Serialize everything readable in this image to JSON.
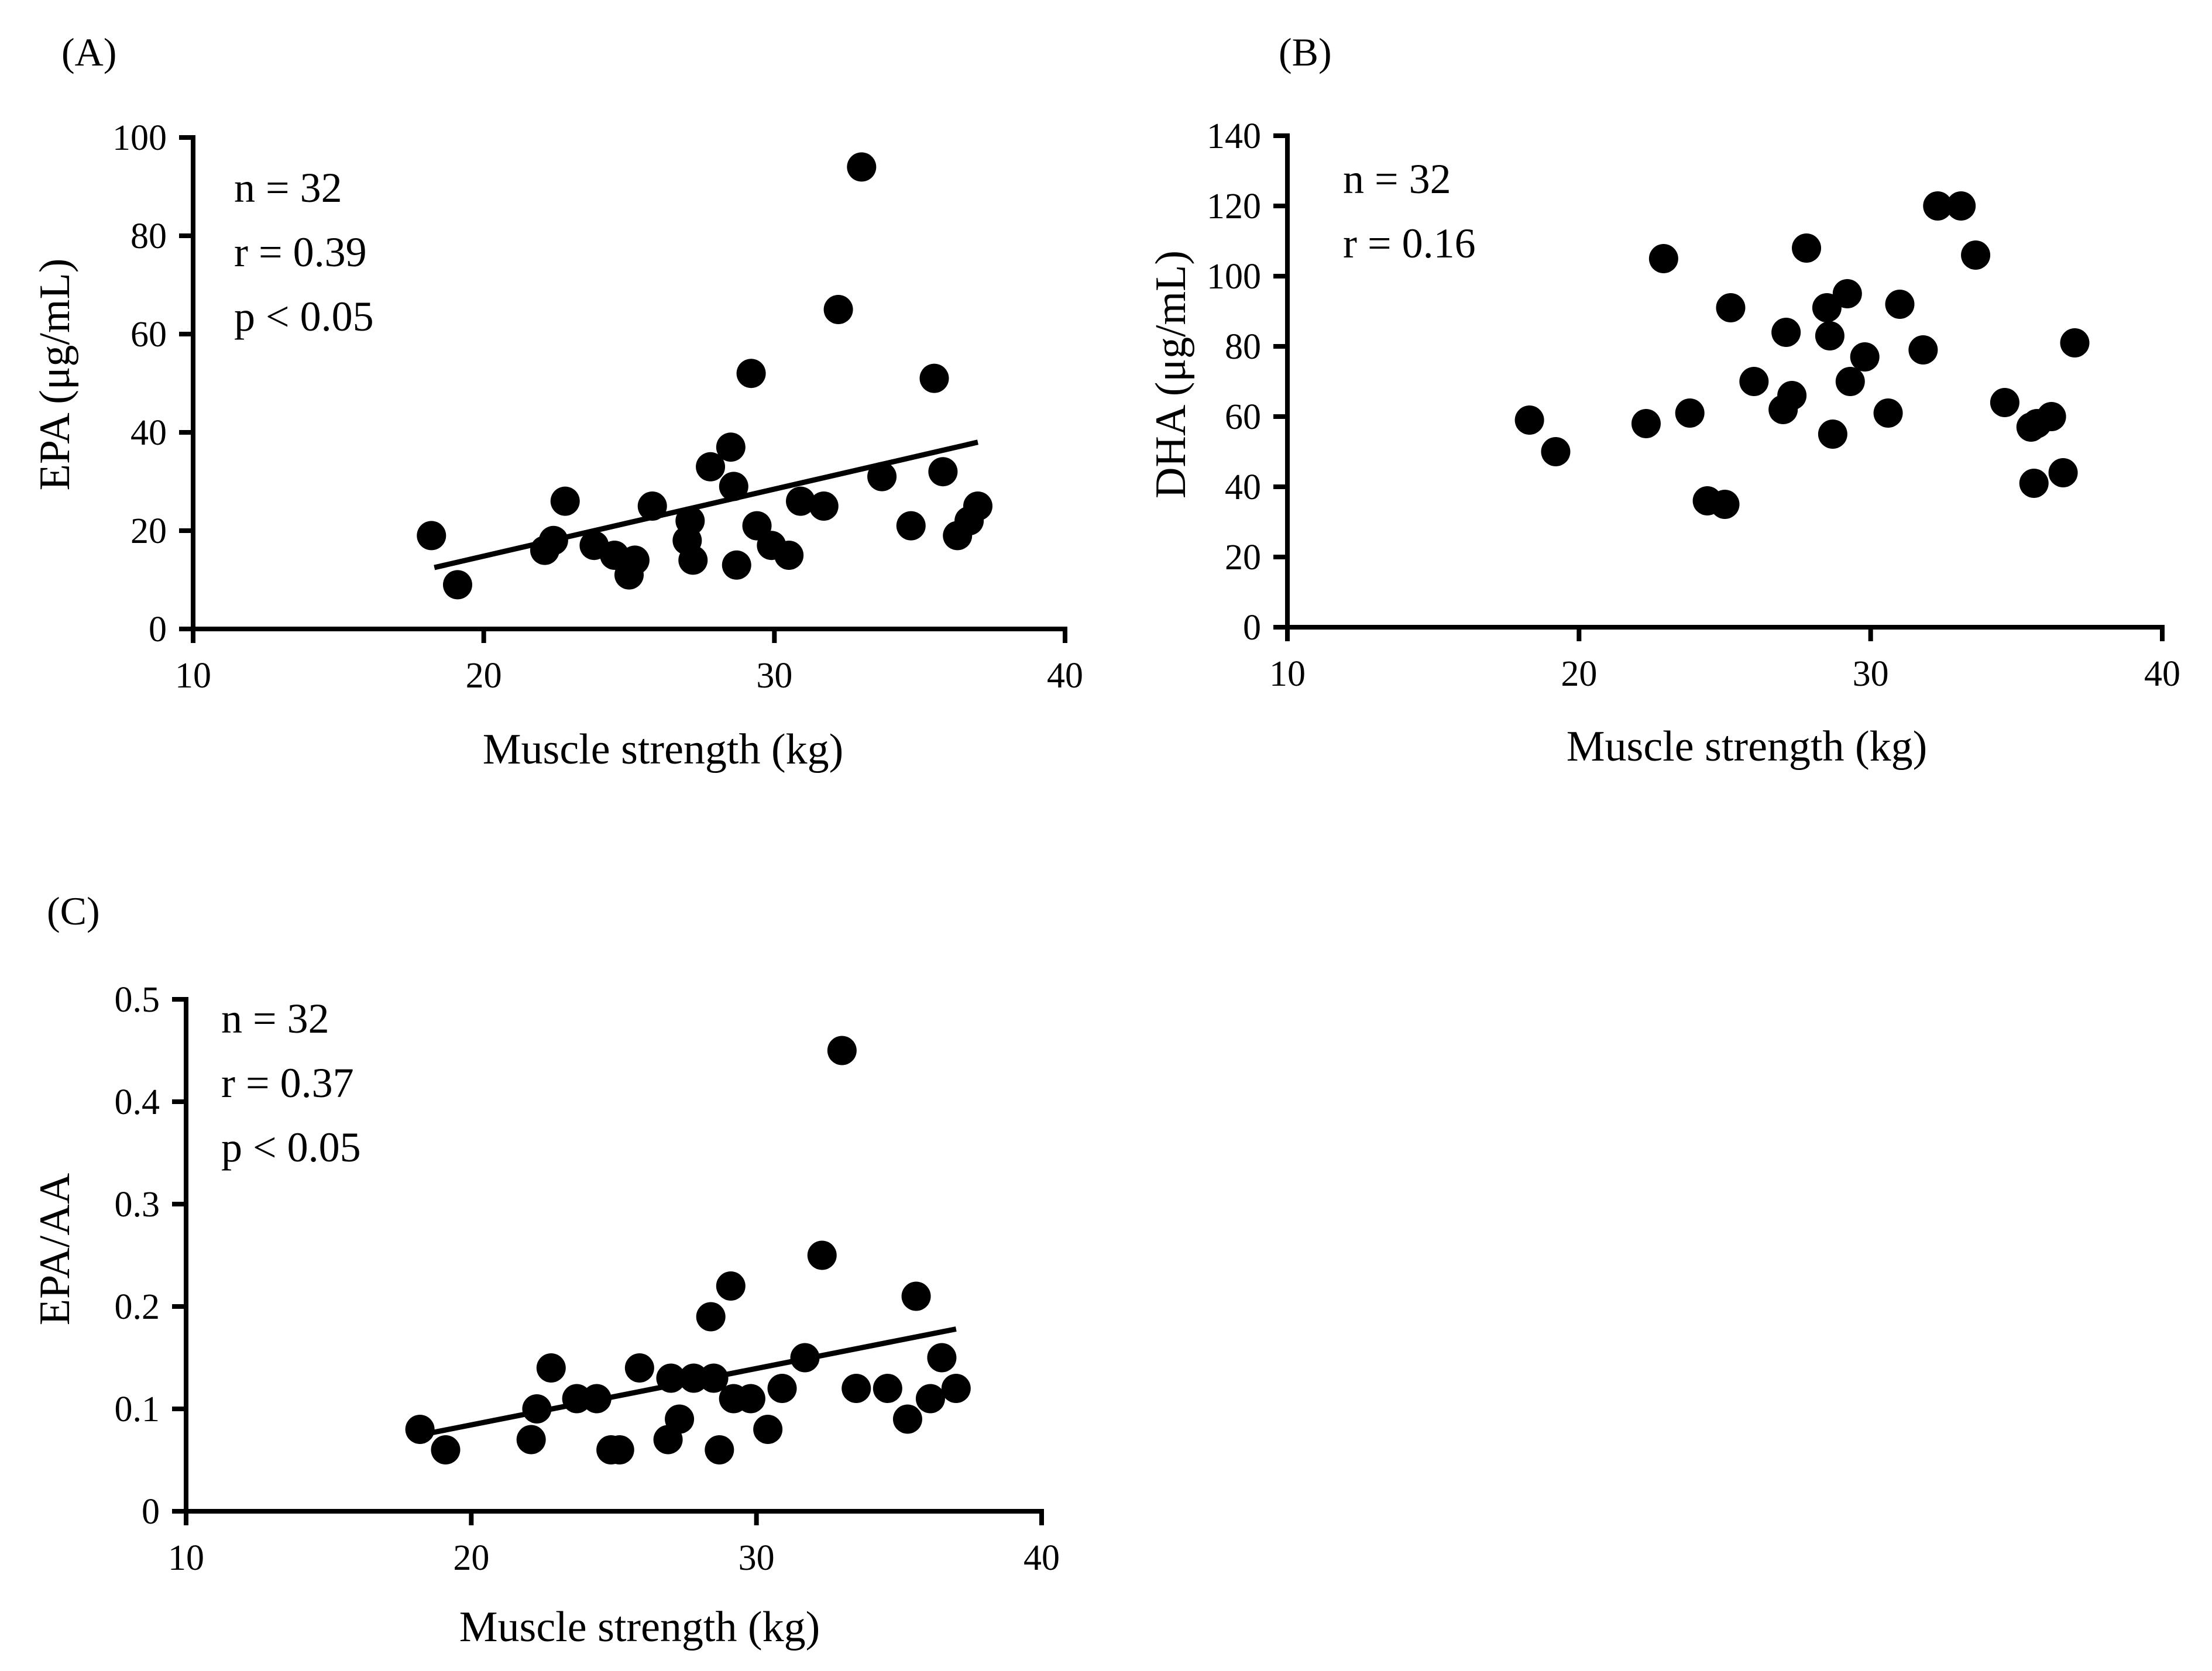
{
  "chart_data": [
    {
      "panel": "(A)",
      "type": "scatter",
      "xlabel": "Muscle strength (kg)",
      "ylabel": "EPA (μg/mL)",
      "xlim": [
        10,
        40
      ],
      "ylim": [
        0,
        100
      ],
      "xticks": [
        10,
        20,
        30,
        40
      ],
      "yticks": [
        0,
        20,
        40,
        60,
        80,
        100
      ],
      "annotations": [
        "n = 32",
        "r = 0.39",
        "p < 0.05"
      ],
      "trendline": {
        "x": [
          18.3,
          37.0
        ],
        "y": [
          12.5,
          38.0
        ]
      },
      "points": [
        {
          "x": 18.2,
          "y": 19
        },
        {
          "x": 19.1,
          "y": 9
        },
        {
          "x": 22.1,
          "y": 16
        },
        {
          "x": 22.4,
          "y": 18
        },
        {
          "x": 22.8,
          "y": 26
        },
        {
          "x": 23.8,
          "y": 17
        },
        {
          "x": 24.5,
          "y": 15
        },
        {
          "x": 25.0,
          "y": 11
        },
        {
          "x": 25.2,
          "y": 14
        },
        {
          "x": 25.8,
          "y": 25
        },
        {
          "x": 27.0,
          "y": 18
        },
        {
          "x": 27.1,
          "y": 22
        },
        {
          "x": 27.2,
          "y": 14
        },
        {
          "x": 27.8,
          "y": 33
        },
        {
          "x": 28.5,
          "y": 37
        },
        {
          "x": 28.6,
          "y": 29
        },
        {
          "x": 28.7,
          "y": 13
        },
        {
          "x": 29.2,
          "y": 52
        },
        {
          "x": 29.4,
          "y": 21
        },
        {
          "x": 29.9,
          "y": 17
        },
        {
          "x": 30.5,
          "y": 15
        },
        {
          "x": 30.9,
          "y": 26
        },
        {
          "x": 31.7,
          "y": 25
        },
        {
          "x": 32.2,
          "y": 65
        },
        {
          "x": 33.0,
          "y": 94
        },
        {
          "x": 33.7,
          "y": 31
        },
        {
          "x": 34.7,
          "y": 21
        },
        {
          "x": 35.5,
          "y": 51
        },
        {
          "x": 35.8,
          "y": 32
        },
        {
          "x": 36.3,
          "y": 19
        },
        {
          "x": 36.7,
          "y": 22
        },
        {
          "x": 37.0,
          "y": 25
        }
      ]
    },
    {
      "panel": "(B)",
      "type": "scatter",
      "xlabel": "Muscle strength (kg)",
      "ylabel": "DHA (μg/mL)",
      "xlim": [
        10,
        40
      ],
      "ylim": [
        0,
        140
      ],
      "xticks": [
        10,
        20,
        30,
        40
      ],
      "yticks": [
        0,
        20,
        40,
        60,
        80,
        100,
        120,
        140
      ],
      "annotations": [
        "n = 32",
        "r = 0.16"
      ],
      "points": [
        {
          "x": 18.3,
          "y": 59
        },
        {
          "x": 19.2,
          "y": 50
        },
        {
          "x": 22.3,
          "y": 58
        },
        {
          "x": 22.9,
          "y": 105
        },
        {
          "x": 23.8,
          "y": 61
        },
        {
          "x": 24.4,
          "y": 36
        },
        {
          "x": 25.0,
          "y": 35
        },
        {
          "x": 25.2,
          "y": 91
        },
        {
          "x": 26.0,
          "y": 70
        },
        {
          "x": 27.0,
          "y": 62
        },
        {
          "x": 27.1,
          "y": 84
        },
        {
          "x": 27.3,
          "y": 66
        },
        {
          "x": 27.8,
          "y": 108
        },
        {
          "x": 28.5,
          "y": 91
        },
        {
          "x": 28.6,
          "y": 83
        },
        {
          "x": 28.7,
          "y": 55
        },
        {
          "x": 29.2,
          "y": 95
        },
        {
          "x": 29.3,
          "y": 70
        },
        {
          "x": 29.8,
          "y": 77
        },
        {
          "x": 30.6,
          "y": 61
        },
        {
          "x": 31.0,
          "y": 92
        },
        {
          "x": 31.8,
          "y": 79
        },
        {
          "x": 32.3,
          "y": 120
        },
        {
          "x": 33.1,
          "y": 120
        },
        {
          "x": 33.6,
          "y": 106
        },
        {
          "x": 34.6,
          "y": 64
        },
        {
          "x": 35.5,
          "y": 57
        },
        {
          "x": 35.6,
          "y": 41
        },
        {
          "x": 36.2,
          "y": 60
        },
        {
          "x": 36.6,
          "y": 44
        },
        {
          "x": 37.0,
          "y": 81
        },
        {
          "x": 35.7,
          "y": 58
        }
      ]
    },
    {
      "panel": "(C)",
      "type": "scatter",
      "xlabel": "Muscle strength (kg)",
      "ylabel": "EPA/AA",
      "xlim": [
        10,
        40
      ],
      "ylim": [
        0,
        0.5
      ],
      "xticks": [
        10,
        20,
        30,
        40
      ],
      "yticks": [
        0,
        0.1,
        0.2,
        0.3,
        0.4,
        0.5
      ],
      "annotations": [
        "n = 32",
        "r = 0.37",
        "p < 0.05"
      ],
      "trendline": {
        "x": [
          18.3,
          37.0
        ],
        "y": [
          0.075,
          0.178
        ]
      },
      "points": [
        {
          "x": 18.2,
          "y": 0.08
        },
        {
          "x": 19.1,
          "y": 0.06
        },
        {
          "x": 22.1,
          "y": 0.07
        },
        {
          "x": 22.3,
          "y": 0.1
        },
        {
          "x": 22.8,
          "y": 0.14
        },
        {
          "x": 23.7,
          "y": 0.11
        },
        {
          "x": 24.4,
          "y": 0.11
        },
        {
          "x": 24.9,
          "y": 0.06
        },
        {
          "x": 25.2,
          "y": 0.06
        },
        {
          "x": 25.9,
          "y": 0.14
        },
        {
          "x": 26.9,
          "y": 0.07
        },
        {
          "x": 27.0,
          "y": 0.13
        },
        {
          "x": 27.3,
          "y": 0.09
        },
        {
          "x": 27.8,
          "y": 0.13
        },
        {
          "x": 28.4,
          "y": 0.19
        },
        {
          "x": 28.5,
          "y": 0.13
        },
        {
          "x": 28.7,
          "y": 0.06
        },
        {
          "x": 29.1,
          "y": 0.22
        },
        {
          "x": 29.2,
          "y": 0.11
        },
        {
          "x": 29.8,
          "y": 0.11
        },
        {
          "x": 30.4,
          "y": 0.08
        },
        {
          "x": 30.9,
          "y": 0.12
        },
        {
          "x": 31.7,
          "y": 0.15
        },
        {
          "x": 32.3,
          "y": 0.25
        },
        {
          "x": 33.0,
          "y": 0.45
        },
        {
          "x": 33.5,
          "y": 0.12
        },
        {
          "x": 34.6,
          "y": 0.12
        },
        {
          "x": 35.3,
          "y": 0.09
        },
        {
          "x": 35.6,
          "y": 0.21
        },
        {
          "x": 36.1,
          "y": 0.11
        },
        {
          "x": 36.5,
          "y": 0.15
        },
        {
          "x": 37.0,
          "y": 0.12
        }
      ]
    }
  ]
}
